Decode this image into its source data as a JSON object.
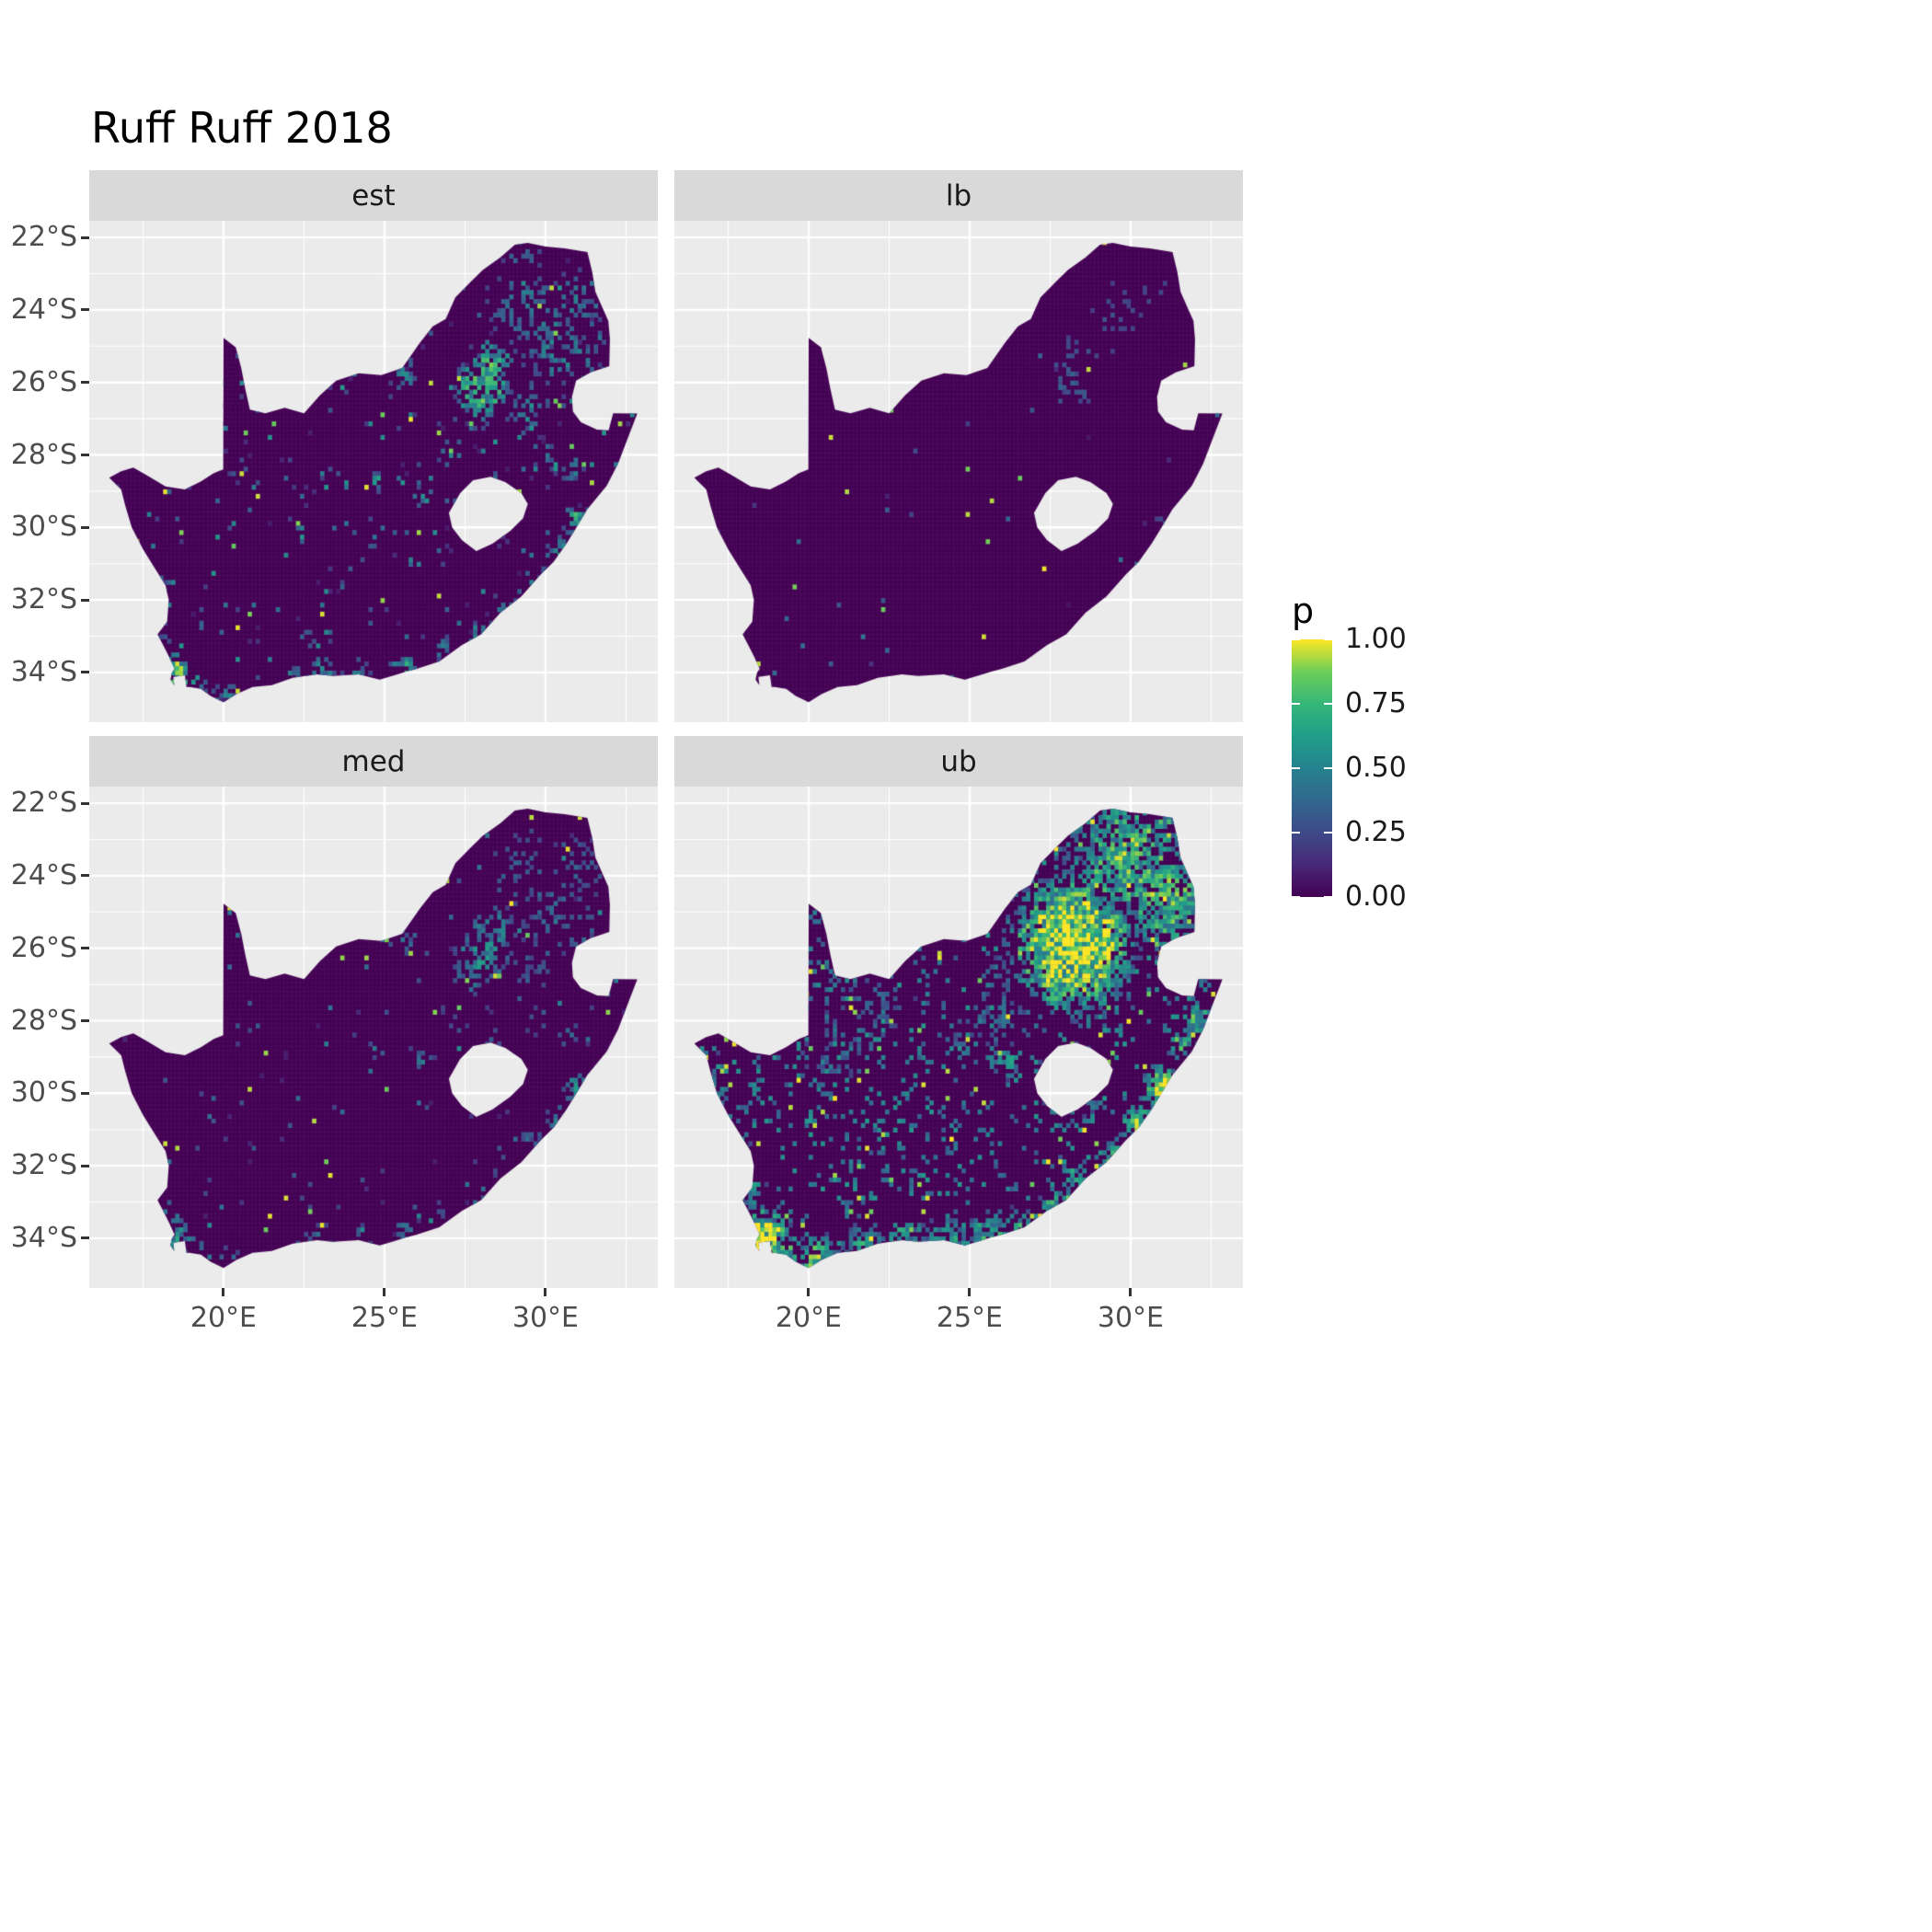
{
  "title": "Ruff Ruff 2018",
  "chart_data": {
    "type": "heatmap",
    "subtype": "faceted-raster-map",
    "region": "South Africa",
    "variable": "p",
    "x_axis": {
      "tick_labels": [
        "20°E",
        "25°E",
        "30°E"
      ],
      "tick_values": [
        20,
        25,
        30
      ],
      "range_lon": [
        15.83,
        33.49
      ]
    },
    "y_axis": {
      "tick_labels": [
        "22°S",
        "24°S",
        "26°S",
        "28°S",
        "30°S",
        "32°S",
        "34°S"
      ],
      "tick_values": [
        22,
        24,
        26,
        28,
        30,
        32,
        34
      ],
      "range_lat": [
        -35.37,
        -21.54
      ]
    },
    "grid": {
      "major_color": "#ffffff",
      "panel_background": "#ebebeb",
      "strip_background": "#d9d9d9"
    },
    "legend": {
      "title": "p",
      "tick_labels": [
        "1.00",
        "0.75",
        "0.50",
        "0.25",
        "0.00"
      ],
      "tick_values": [
        1.0,
        0.75,
        0.5,
        0.25,
        0.0
      ],
      "position": "right",
      "stops": [
        [
          0,
          "#440154"
        ],
        [
          0.125,
          "#482878"
        ],
        [
          0.25,
          "#3e4a89"
        ],
        [
          0.375,
          "#31688e"
        ],
        [
          0.5,
          "#26828e"
        ],
        [
          0.625,
          "#1f9e89"
        ],
        [
          0.75,
          "#35b779"
        ],
        [
          0.875,
          "#6ece58"
        ],
        [
          1,
          "#fde725"
        ]
      ]
    },
    "base_value_color": "#440154",
    "facets": [
      {
        "label": "est",
        "seed": 11,
        "speckle": 0.05,
        "speckle_min": 0.08,
        "speckle_max": 0.6,
        "pow": 1.3,
        "rare_yellow": 0.004,
        "hotspots": [
          [
            28.05,
            -26.15,
            0.95,
            0.9
          ],
          [
            28.35,
            -25.5,
            0.8,
            0.75
          ],
          [
            27.7,
            -26.75,
            0.7,
            0.5
          ],
          [
            29.3,
            -23.9,
            1.3,
            0.35
          ],
          [
            30.1,
            -24.9,
            1.4,
            0.38
          ],
          [
            31.05,
            -23.8,
            1.0,
            0.35
          ],
          [
            30.9,
            -25.35,
            0.9,
            0.42
          ],
          [
            29.45,
            -26.6,
            0.85,
            0.3
          ],
          [
            29.3,
            -22.45,
            0.7,
            0.3
          ],
          [
            26.2,
            -29.12,
            0.38,
            0.55
          ],
          [
            24.76,
            -28.74,
            0.32,
            0.55
          ],
          [
            25.6,
            -25.72,
            0.55,
            0.45
          ],
          [
            27.1,
            -27.95,
            0.5,
            0.35
          ],
          [
            28.45,
            -28.65,
            0.5,
            0.3
          ],
          [
            29.95,
            -27.95,
            0.55,
            0.32
          ],
          [
            30.75,
            -28.35,
            0.5,
            0.38
          ],
          [
            31.0,
            -29.85,
            0.55,
            0.8
          ],
          [
            30.4,
            -30.7,
            0.5,
            0.55
          ],
          [
            29.6,
            -31.3,
            0.45,
            0.45
          ],
          [
            28.75,
            -32.1,
            0.42,
            0.42
          ],
          [
            27.9,
            -33.0,
            0.45,
            0.55
          ],
          [
            26.85,
            -33.35,
            0.4,
            0.35
          ],
          [
            25.6,
            -33.92,
            0.5,
            0.65
          ],
          [
            24.1,
            -34.05,
            0.5,
            0.38
          ],
          [
            23.0,
            -34.05,
            0.55,
            0.48
          ],
          [
            22.15,
            -34.12,
            0.4,
            0.42
          ],
          [
            20.1,
            -34.7,
            0.5,
            0.5
          ],
          [
            19.05,
            -34.35,
            0.5,
            0.52
          ],
          [
            18.55,
            -33.95,
            0.65,
            0.9
          ],
          [
            18.3,
            -32.9,
            0.4,
            0.38
          ],
          [
            17.9,
            -31.6,
            0.35,
            0.3
          ],
          [
            20.5,
            -28.3,
            0.4,
            0.25
          ],
          [
            22.6,
            -33.0,
            0.4,
            0.22
          ],
          [
            24.6,
            -32.5,
            0.4,
            0.2
          ]
        ]
      },
      {
        "label": "lb",
        "seed": 22,
        "speckle": 0.007,
        "speckle_min": 0.05,
        "speckle_max": 0.5,
        "pow": 1.2,
        "rare_yellow": 0.0015,
        "hotspots": [
          [
            28.1,
            -26.0,
            0.9,
            0.22
          ],
          [
            28.35,
            -25.3,
            0.7,
            0.16
          ],
          [
            29.6,
            -24.2,
            1.1,
            0.12
          ],
          [
            30.8,
            -23.6,
            0.8,
            0.1
          ],
          [
            31.0,
            -29.85,
            0.3,
            0.18
          ],
          [
            18.5,
            -33.9,
            0.35,
            0.2
          ],
          [
            25.6,
            -33.95,
            0.3,
            0.14
          ]
        ]
      },
      {
        "label": "med",
        "seed": 33,
        "speckle": 0.022,
        "speckle_min": 0.08,
        "speckle_max": 0.55,
        "pow": 1.4,
        "rare_yellow": 0.0035,
        "hotspots_from": "est",
        "strength_scale": 0.62
      },
      {
        "label": "ub",
        "seed": 44,
        "speckle": 0.13,
        "speckle_min": 0.3,
        "speckle_max": 0.6,
        "pow": 1.0,
        "rare_yellow": 0.012,
        "hotspots": [
          [
            28.2,
            -25.9,
            2.3,
            1.25
          ],
          [
            29.9,
            -23.6,
            2.1,
            0.85
          ],
          [
            31.1,
            -24.7,
            1.7,
            0.85
          ],
          [
            29.6,
            -22.5,
            1.1,
            0.7
          ],
          [
            31.1,
            -22.6,
            0.9,
            0.7
          ],
          [
            31.9,
            -26.4,
            0.8,
            0.8
          ],
          [
            32.1,
            -27.9,
            0.6,
            0.8
          ],
          [
            31.6,
            -28.7,
            0.55,
            0.7
          ],
          [
            28.65,
            -27.2,
            1.2,
            0.5
          ],
          [
            27.0,
            -26.5,
            1.3,
            0.45
          ],
          [
            25.8,
            -27.9,
            1.1,
            0.3
          ],
          [
            22.0,
            -27.5,
            1.5,
            0.22
          ],
          [
            20.8,
            -28.7,
            1.2,
            0.25
          ],
          [
            26.2,
            -29.1,
            0.55,
            0.6
          ],
          [
            24.76,
            -28.72,
            0.45,
            0.5
          ],
          [
            28.2,
            -29.6,
            1.25,
            0.4
          ],
          [
            31.0,
            -29.85,
            0.8,
            1.0
          ],
          [
            30.25,
            -30.9,
            0.7,
            0.85
          ],
          [
            29.35,
            -31.7,
            0.6,
            0.7
          ],
          [
            28.35,
            -32.3,
            0.6,
            0.65
          ],
          [
            27.7,
            -33.1,
            0.6,
            0.75
          ],
          [
            26.5,
            -33.8,
            0.7,
            0.65
          ],
          [
            25.6,
            -33.9,
            0.7,
            0.85
          ],
          [
            24.3,
            -34.1,
            0.8,
            0.7
          ],
          [
            23.0,
            -34.1,
            0.8,
            0.75
          ],
          [
            21.8,
            -34.3,
            0.8,
            0.7
          ],
          [
            20.3,
            -34.6,
            0.8,
            0.85
          ],
          [
            19.15,
            -34.4,
            0.7,
            0.85
          ],
          [
            18.6,
            -33.9,
            0.95,
            1.15
          ],
          [
            18.2,
            -32.7,
            0.55,
            0.6
          ],
          [
            17.8,
            -31.4,
            0.5,
            0.5
          ],
          [
            17.3,
            -29.8,
            0.5,
            0.45
          ],
          [
            16.8,
            -28.8,
            0.45,
            0.5
          ]
        ]
      }
    ],
    "south_africa_outline": [
      [
        16.45,
        -28.63
      ],
      [
        16.82,
        -28.95
      ],
      [
        16.95,
        -29.4
      ],
      [
        17.15,
        -30.0
      ],
      [
        17.5,
        -30.6
      ],
      [
        17.85,
        -31.1
      ],
      [
        18.2,
        -31.6
      ],
      [
        18.3,
        -32.0
      ],
      [
        18.25,
        -32.6
      ],
      [
        17.95,
        -32.95
      ],
      [
        18.1,
        -33.2
      ],
      [
        18.3,
        -33.55
      ],
      [
        18.48,
        -33.9
      ],
      [
        18.4,
        -34.0
      ],
      [
        18.35,
        -34.2
      ],
      [
        18.47,
        -34.35
      ],
      [
        18.44,
        -34.12
      ],
      [
        18.8,
        -34.08
      ],
      [
        18.85,
        -34.4
      ],
      [
        18.95,
        -34.4
      ],
      [
        19.3,
        -34.45
      ],
      [
        19.6,
        -34.65
      ],
      [
        20.0,
        -34.82
      ],
      [
        20.4,
        -34.6
      ],
      [
        20.9,
        -34.4
      ],
      [
        21.5,
        -34.35
      ],
      [
        22.15,
        -34.15
      ],
      [
        22.9,
        -34.05
      ],
      [
        23.4,
        -34.1
      ],
      [
        24.2,
        -34.05
      ],
      [
        24.85,
        -34.2
      ],
      [
        25.4,
        -34.05
      ],
      [
        25.65,
        -33.98
      ],
      [
        26.0,
        -33.9
      ],
      [
        26.7,
        -33.7
      ],
      [
        27.4,
        -33.25
      ],
      [
        28.0,
        -32.95
      ],
      [
        28.6,
        -32.35
      ],
      [
        29.25,
        -31.9
      ],
      [
        29.85,
        -31.3
      ],
      [
        30.25,
        -30.95
      ],
      [
        30.65,
        -30.45
      ],
      [
        31.05,
        -29.87
      ],
      [
        31.3,
        -29.5
      ],
      [
        31.9,
        -28.85
      ],
      [
        32.25,
        -28.25
      ],
      [
        32.55,
        -27.55
      ],
      [
        32.85,
        -26.86
      ],
      [
        32.1,
        -26.85
      ],
      [
        31.96,
        -27.32
      ],
      [
        31.6,
        -27.3
      ],
      [
        31.1,
        -27.1
      ],
      [
        30.85,
        -26.8
      ],
      [
        30.82,
        -26.4
      ],
      [
        30.95,
        -25.95
      ],
      [
        31.4,
        -25.72
      ],
      [
        31.98,
        -25.55
      ],
      [
        32.0,
        -24.8
      ],
      [
        31.95,
        -24.3
      ],
      [
        31.75,
        -23.9
      ],
      [
        31.55,
        -23.5
      ],
      [
        31.45,
        -22.95
      ],
      [
        31.3,
        -22.4
      ],
      [
        30.6,
        -22.3
      ],
      [
        30.0,
        -22.25
      ],
      [
        29.45,
        -22.15
      ],
      [
        29.05,
        -22.2
      ],
      [
        28.6,
        -22.55
      ],
      [
        28.05,
        -22.9
      ],
      [
        27.7,
        -23.2
      ],
      [
        27.2,
        -23.65
      ],
      [
        26.9,
        -24.25
      ],
      [
        26.5,
        -24.45
      ],
      [
        26.1,
        -24.9
      ],
      [
        25.55,
        -25.6
      ],
      [
        24.9,
        -25.8
      ],
      [
        24.2,
        -25.75
      ],
      [
        23.5,
        -25.95
      ],
      [
        23.0,
        -26.35
      ],
      [
        22.5,
        -26.85
      ],
      [
        21.9,
        -26.7
      ],
      [
        21.3,
        -26.85
      ],
      [
        20.82,
        -26.75
      ],
      [
        20.68,
        -26.2
      ],
      [
        20.55,
        -25.6
      ],
      [
        20.38,
        -25.03
      ],
      [
        20.0,
        -24.77
      ],
      [
        19.99,
        -28.4
      ],
      [
        19.7,
        -28.5
      ],
      [
        19.3,
        -28.73
      ],
      [
        18.8,
        -28.95
      ],
      [
        18.2,
        -28.87
      ],
      [
        17.6,
        -28.55
      ],
      [
        17.2,
        -28.35
      ],
      [
        16.82,
        -28.45
      ]
    ],
    "lesotho_hole": [
      [
        27.0,
        -29.6
      ],
      [
        27.35,
        -29.05
      ],
      [
        27.75,
        -28.7
      ],
      [
        28.3,
        -28.6
      ],
      [
        28.75,
        -28.75
      ],
      [
        29.25,
        -29.05
      ],
      [
        29.45,
        -29.35
      ],
      [
        29.3,
        -29.75
      ],
      [
        28.9,
        -30.1
      ],
      [
        28.35,
        -30.45
      ],
      [
        27.85,
        -30.65
      ],
      [
        27.4,
        -30.35
      ],
      [
        27.1,
        -30.0
      ]
    ]
  }
}
